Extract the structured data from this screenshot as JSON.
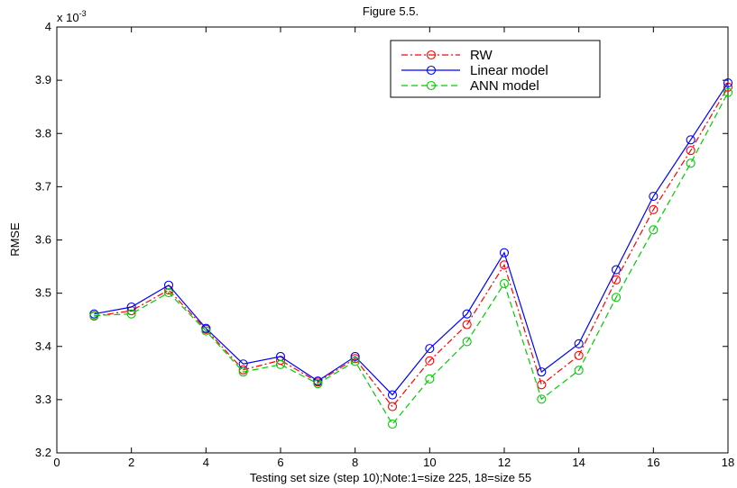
{
  "chart_data": {
    "type": "line",
    "title": "Figure 5.5.",
    "xlabel": "Testing set size (step 10);Note:1=size 225, 18=size 55",
    "ylabel": "RMSE",
    "exponent_label": "x 10",
    "exponent_power": "-3",
    "xlim": [
      0,
      18
    ],
    "ylim": [
      3.2,
      4.0
    ],
    "xticks": [
      "0",
      "2",
      "4",
      "6",
      "8",
      "10",
      "12",
      "14",
      "16",
      "18"
    ],
    "yticks": [
      "3.2",
      "3.3",
      "3.4",
      "3.5",
      "3.6",
      "3.7",
      "3.8",
      "3.9",
      "4"
    ],
    "legend_position": "top-right",
    "grid": false,
    "x": [
      1,
      2,
      3,
      4,
      5,
      6,
      7,
      8,
      9,
      10,
      11,
      12,
      13,
      14,
      15,
      16,
      17,
      18
    ],
    "series": [
      {
        "name": "RW",
        "color": "#ff0000",
        "dash": "dash-dot",
        "marker": "circle",
        "values": [
          3.457,
          3.467,
          3.506,
          3.432,
          3.356,
          3.374,
          3.333,
          3.377,
          3.287,
          3.373,
          3.441,
          3.553,
          3.328,
          3.383,
          3.525,
          3.657,
          3.768,
          3.887
        ]
      },
      {
        "name": "Linear model",
        "color": "#0000ff",
        "dash": "solid",
        "marker": "circle",
        "values": [
          3.461,
          3.474,
          3.515,
          3.434,
          3.367,
          3.381,
          3.335,
          3.381,
          3.309,
          3.396,
          3.461,
          3.576,
          3.352,
          3.405,
          3.544,
          3.682,
          3.788,
          3.895
        ]
      },
      {
        "name": "ANN model",
        "color": "#00cc00",
        "dash": "dashed",
        "marker": "circle",
        "values": [
          3.458,
          3.461,
          3.501,
          3.429,
          3.352,
          3.366,
          3.33,
          3.372,
          3.254,
          3.339,
          3.409,
          3.518,
          3.301,
          3.355,
          3.492,
          3.619,
          3.744,
          3.877
        ]
      }
    ]
  }
}
